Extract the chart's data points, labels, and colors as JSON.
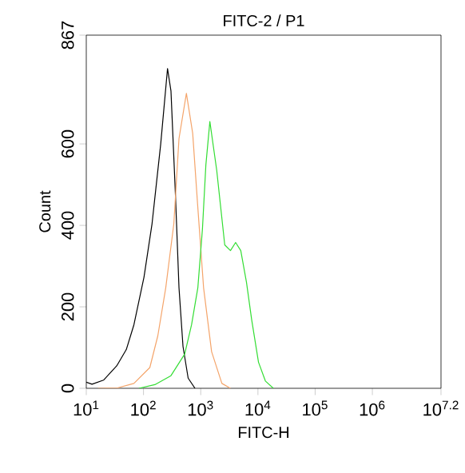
{
  "chart_data": {
    "type": "line",
    "title": "FITC-2 / P1",
    "xlabel": "FITC-H",
    "ylabel": "Count",
    "log": "x",
    "xlim": [
      10,
      15848932
    ],
    "xticks": [
      {
        "value": 10,
        "label": "10$^{1}$"
      },
      {
        "value": 100,
        "label": "10$^{2}$"
      },
      {
        "value": 1000,
        "label": "10$^{3}$"
      },
      {
        "value": 10000,
        "label": "10$^{4}$"
      },
      {
        "value": 100000,
        "label": "10$^{5}$"
      },
      {
        "value": 1000000,
        "label": "10$^{6}$"
      },
      {
        "value": 15848932,
        "label": "10$^{7.2}$"
      }
    ],
    "ylim": [
      0,
      867
    ],
    "yticks": [
      0,
      200,
      400,
      600,
      867
    ],
    "grid": false,
    "marker": "none",
    "line_style": "solid",
    "series": [
      {
        "color": "#000000",
        "x": [
          10,
          12.6,
          20,
          34,
          50,
          68,
          102,
          141,
          200,
          263,
          302,
          363,
          417,
          490,
          603,
          794
        ],
        "values": [
          15,
          10,
          20,
          55,
          95,
          156,
          273,
          404,
          600,
          785,
          730,
          469,
          247,
          103,
          25,
          0
        ]
      },
      {
        "color": "#f4a46a",
        "x": [
          16,
          35,
          68,
          129,
          178,
          245,
          339,
          417,
          562,
          724,
          891,
          1122,
          1549,
          2344,
          3311
        ],
        "values": [
          0,
          1,
          12,
          51,
          129,
          247,
          404,
          613,
          724,
          626,
          443,
          247,
          90,
          12,
          0
        ]
      },
      {
        "color": "#33dd33",
        "x": [
          83,
          158,
          302,
          525,
          692,
          891,
          1072,
          1230,
          1445,
          1905,
          2630,
          3311,
          4074,
          5012,
          6310,
          7762,
          10233,
          13490,
          18621
        ],
        "values": [
          0,
          9,
          31,
          84,
          156,
          247,
          391,
          548,
          655,
          535,
          352,
          338,
          358,
          338,
          260,
          169,
          64,
          18,
          0
        ]
      }
    ]
  }
}
